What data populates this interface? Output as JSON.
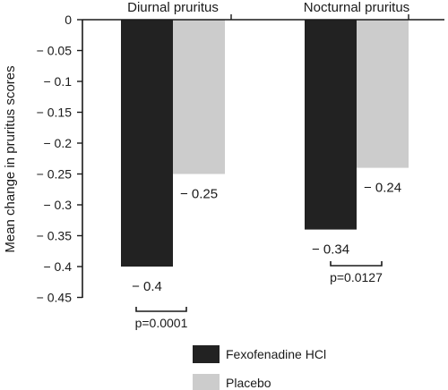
{
  "chart_data": {
    "type": "bar",
    "categories": [
      "Diurnal pruritus",
      "Nocturnal pruritus"
    ],
    "series": [
      {
        "name": "Fexofenadine HCl",
        "color": "#222222",
        "values": [
          -0.4,
          -0.34
        ]
      },
      {
        "name": "Placebo",
        "color": "#cccccc",
        "values": [
          -0.25,
          -0.24
        ]
      }
    ],
    "value_labels": [
      [
        "− 0.4",
        "− 0.34"
      ],
      [
        "− 0.25",
        "− 0.24"
      ]
    ],
    "p_values": [
      "p=0.0001",
      "p=0.0127"
    ],
    "ylabel": "Mean change in pruritus scores",
    "ylim": [
      -0.45,
      0
    ],
    "yticks": [
      0,
      -0.05,
      -0.1,
      -0.15,
      -0.2,
      -0.25,
      -0.3,
      -0.35,
      -0.4,
      -0.45
    ],
    "ytick_labels": [
      "0",
      "− 0.05",
      "− 0.1",
      "− 0.15",
      "− 0.2",
      "− 0.25",
      "− 0.3",
      "− 0.35",
      "− 0.4",
      "− 0.45"
    ],
    "legend_position": "bottom-right",
    "grid": false
  }
}
